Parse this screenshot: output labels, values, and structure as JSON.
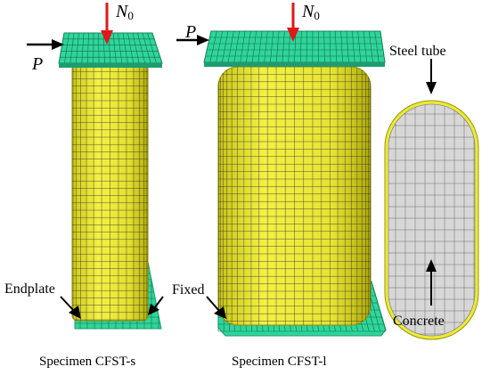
{
  "labels": {
    "steel_tube": "Steel tube",
    "concrete": "Concrete",
    "endplate": "Endplate",
    "fixed": "Fixed"
  },
  "loads": {
    "axial_symbol": "N",
    "axial_subscript": "0",
    "lateral_symbol": "P"
  },
  "captions": {
    "specimen_s": "Specimen CFST-s",
    "specimen_l": "Specimen CFST-l"
  },
  "colors": {
    "steel": "#ecea37",
    "steel_dark": "#b8b40a",
    "endplate": "#2fd59a",
    "endplate_dark": "#1e9c70",
    "concrete": "#d7d7d7",
    "mesh": "#2b2b2b",
    "axial_arrow": "#e01818",
    "lateral_arrow": "#000000"
  }
}
